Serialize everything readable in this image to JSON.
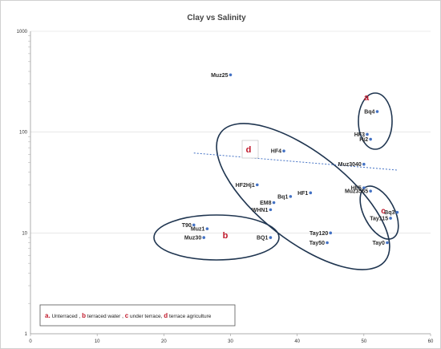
{
  "chart_data": {
    "type": "scatter",
    "title": "Clay vs Salinity",
    "xlabel": "",
    "ylabel": "",
    "x_range": [
      0,
      60
    ],
    "y_range": [
      1,
      1000
    ],
    "y_scale": "log",
    "x_ticks": [
      0,
      10,
      20,
      30,
      40,
      50,
      60
    ],
    "y_ticks": [
      1,
      10,
      100,
      1000
    ],
    "series": [
      {
        "color": "#4472c4",
        "points": [
          {
            "label": "Muz25",
            "x": 30.0,
            "y": 370
          },
          {
            "label": "Bq4",
            "x": 52.0,
            "y": 160
          },
          {
            "label": "HF3",
            "x": 50.5,
            "y": 95
          },
          {
            "label": "Hj2",
            "x": 51.0,
            "y": 85
          },
          {
            "label": "HF4",
            "x": 38.0,
            "y": 65
          },
          {
            "label": "Muz3040",
            "x": 50.0,
            "y": 48
          },
          {
            "label": "HF2Hj1",
            "x": 34.0,
            "y": 30
          },
          {
            "label": "HF5",
            "x": 50.0,
            "y": 28
          },
          {
            "label": "Muz3565",
            "x": 51.0,
            "y": 26
          },
          {
            "label": "HF1",
            "x": 42.0,
            "y": 25
          },
          {
            "label": "Bq1",
            "x": 39.0,
            "y": 23
          },
          {
            "label": "EM8",
            "x": 36.5,
            "y": 20
          },
          {
            "label": "WHN1",
            "x": 36.0,
            "y": 17
          },
          {
            "label": "Bq3",
            "x": 55.0,
            "y": 16
          },
          {
            "label": "Tay115",
            "x": 54.0,
            "y": 14
          },
          {
            "label": "T90",
            "x": 24.5,
            "y": 12
          },
          {
            "label": "Muz1",
            "x": 26.5,
            "y": 11
          },
          {
            "label": "Tay120",
            "x": 45.0,
            "y": 10
          },
          {
            "label": "Muz30",
            "x": 26.0,
            "y": 9
          },
          {
            "label": "BQ1",
            "x": 36.0,
            "y": 9
          },
          {
            "label": "Tay50",
            "x": 44.5,
            "y": 8
          },
          {
            "label": "Tay0",
            "x": 53.5,
            "y": 8
          }
        ]
      }
    ],
    "trendline": {
      "x": [
        24.5,
        55.0
      ],
      "y": [
        62,
        42
      ]
    },
    "legend": {
      "position": "bottom-left",
      "entries": [
        {
          "letter": "a.",
          "text": " Unterraced ,"
        },
        {
          "letter": "b",
          "text": " terraced water ,"
        },
        {
          "letter": "c",
          "text": " under terrace,"
        },
        {
          "letter": "d",
          "text": " terrace agriculture"
        }
      ]
    },
    "annotations": [
      "a",
      "b",
      "c",
      "d"
    ]
  },
  "colors": {
    "point": "#4472c4",
    "annotation": "#c0182a",
    "ellipse": "#1f3550",
    "grid": "#d9d9d9"
  }
}
